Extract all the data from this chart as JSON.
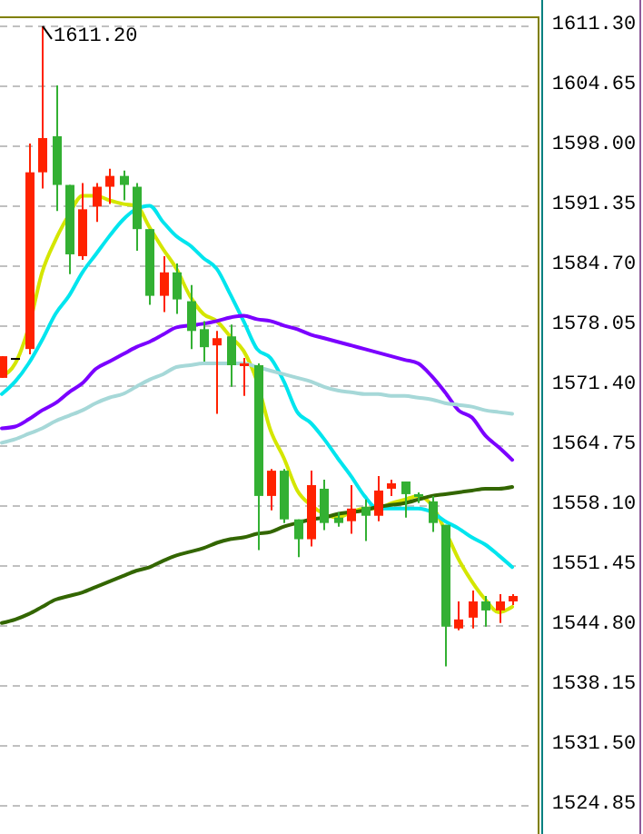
{
  "chart_data": {
    "type": "candlestick",
    "categories": [
      null,
      null,
      null,
      null,
      null,
      null,
      null,
      null,
      null,
      null,
      null,
      null,
      null,
      null,
      null,
      null,
      null,
      null,
      null,
      null,
      null,
      null,
      null,
      null,
      null,
      null,
      null,
      null,
      null,
      null,
      null,
      null,
      null,
      null,
      null,
      null,
      null,
      null,
      null
    ],
    "ohlc": [
      [
        1572.2,
        1574.6,
        1572.2,
        1574.6
      ],
      [
        1574.4,
        1574.4,
        1574.4,
        1574.4
      ],
      [
        1575.4,
        1598.2,
        1574.8,
        1595.0
      ],
      [
        1595.0,
        1611.2,
        1593.2,
        1598.8
      ],
      [
        1599.0,
        1604.65,
        1590.7,
        1593.6
      ],
      [
        1593.6,
        1593.6,
        1583.7,
        1585.9
      ],
      [
        1585.7,
        1593.8,
        1585.3,
        1590.9
      ],
      [
        1591.2,
        1593.8,
        1589.5,
        1593.4
      ],
      [
        1593.4,
        1595.4,
        1591.5,
        1594.6
      ],
      [
        1594.6,
        1595.2,
        1591.9,
        1593.6
      ],
      [
        1593.4,
        1593.8,
        1586.3,
        1588.7
      ],
      [
        1588.7,
        1588.7,
        1580.3,
        1581.3
      ],
      [
        1581.3,
        1585.7,
        1579.5,
        1583.9
      ],
      [
        1583.9,
        1584.9,
        1579.3,
        1580.9
      ],
      [
        1580.7,
        1582.5,
        1575.4,
        1577.4
      ],
      [
        1577.6,
        1578.5,
        1574.0,
        1575.6
      ],
      [
        1575.8,
        1577.4,
        1568.2,
        1576.6
      ],
      [
        1576.8,
        1578.1,
        1571.2,
        1573.6
      ],
      [
        1573.5,
        1574.4,
        1570.2,
        1573.8
      ],
      [
        1573.6,
        1573.8,
        1553.1,
        1559.1
      ],
      [
        1559.1,
        1562.1,
        1557.5,
        1561.9
      ],
      [
        1561.9,
        1562.1,
        1556.1,
        1556.5
      ],
      [
        1556.5,
        1556.5,
        1552.3,
        1554.3
      ],
      [
        1554.3,
        1561.9,
        1553.5,
        1560.3
      ],
      [
        1559.9,
        1560.9,
        1555.3,
        1556.1
      ],
      [
        1556.7,
        1557.3,
        1555.7,
        1556.1
      ],
      [
        1556.3,
        1560.3,
        1554.9,
        1557.7
      ],
      [
        1557.9,
        1558.7,
        1554.1,
        1556.9
      ],
      [
        1556.9,
        1561.3,
        1556.3,
        1559.7
      ],
      [
        1559.9,
        1560.9,
        1559.1,
        1560.5
      ],
      [
        1560.7,
        1560.7,
        1556.7,
        1559.3
      ],
      [
        1559.3,
        1559.5,
        1558.3,
        1559.0
      ],
      [
        1558.5,
        1559.1,
        1555.1,
        1556.1
      ],
      [
        1555.9,
        1555.9,
        1540.2,
        1544.6
      ],
      [
        1544.4,
        1547.4,
        1544.2,
        1545.4
      ],
      [
        1545.6,
        1548.6,
        1544.4,
        1547.4
      ],
      [
        1547.4,
        1548.0,
        1544.6,
        1546.4
      ],
      [
        1546.4,
        1548.2,
        1545.0,
        1547.4
      ],
      [
        1547.4,
        1548.2,
        1547.0,
        1548.0
      ]
    ],
    "series": [
      {
        "type": "line",
        "color": "#d4e600",
        "values": [
          1572.4,
          1573.8,
          1577.8,
          1583.9,
          1587.5,
          1590.3,
          1592.4,
          1592.4,
          1591.9,
          1591.5,
          1591.3,
          1588.9,
          1586.5,
          1584.3,
          1581.3,
          1579.3,
          1578.5,
          1576.8,
          1575.2,
          1571.8,
          1566.4,
          1563.3,
          1559.7,
          1558.1,
          1557.1,
          1556.7,
          1557.3,
          1557.7,
          1557.7,
          1558.3,
          1558.7,
          1559.1,
          1558.1,
          1555.3,
          1552.1,
          1549.6,
          1547.6,
          1546.2,
          1546.8
        ]
      },
      {
        "type": "line",
        "color": "#00e5ee",
        "values": [
          1570.4,
          1571.8,
          1573.8,
          1576.4,
          1579.3,
          1581.3,
          1583.9,
          1585.9,
          1587.9,
          1589.7,
          1590.9,
          1591.3,
          1589.5,
          1587.9,
          1586.9,
          1585.5,
          1584.3,
          1581.5,
          1578.5,
          1575.4,
          1574.4,
          1571.8,
          1568.4,
          1567.2,
          1565.4,
          1563.3,
          1561.3,
          1559.1,
          1557.7,
          1557.7,
          1557.7,
          1557.7,
          1557.3,
          1556.3,
          1555.5,
          1554.5,
          1553.7,
          1552.5,
          1551.2
        ]
      },
      {
        "type": "line",
        "color": "#7b00ff",
        "values": [
          1566.6,
          1566.8,
          1567.6,
          1568.6,
          1569.4,
          1570.6,
          1571.6,
          1573.2,
          1574.0,
          1574.8,
          1575.6,
          1576.2,
          1577.0,
          1577.8,
          1578.0,
          1578.2,
          1578.5,
          1578.9,
          1579.1,
          1578.7,
          1578.5,
          1578.0,
          1577.6,
          1577.0,
          1576.6,
          1576.2,
          1575.8,
          1575.4,
          1575.0,
          1574.6,
          1574.2,
          1573.8,
          1572.4,
          1570.6,
          1568.6,
          1567.8,
          1565.8,
          1564.5,
          1563.1
        ]
      },
      {
        "type": "line",
        "color": "#a6d8d8",
        "values": [
          1565.0,
          1565.4,
          1566.0,
          1566.6,
          1567.4,
          1568.0,
          1568.6,
          1569.4,
          1570.0,
          1570.4,
          1571.2,
          1572.0,
          1572.6,
          1573.4,
          1573.6,
          1573.8,
          1573.8,
          1573.8,
          1573.8,
          1573.4,
          1573.0,
          1572.6,
          1572.2,
          1571.8,
          1571.2,
          1570.8,
          1570.6,
          1570.4,
          1570.4,
          1570.2,
          1570.2,
          1570.0,
          1569.8,
          1569.4,
          1569.2,
          1569.0,
          1568.6,
          1568.4,
          1568.2
        ]
      },
      {
        "type": "line",
        "color": "#336600",
        "values": [
          1545.0,
          1545.4,
          1546.0,
          1546.8,
          1547.6,
          1548.0,
          1548.4,
          1549.0,
          1549.6,
          1550.2,
          1550.8,
          1551.2,
          1551.9,
          1552.5,
          1552.9,
          1553.3,
          1553.9,
          1554.3,
          1554.5,
          1554.9,
          1555.1,
          1555.7,
          1556.1,
          1556.5,
          1556.7,
          1557.1,
          1557.3,
          1557.5,
          1557.9,
          1558.1,
          1558.3,
          1558.7,
          1559.1,
          1559.3,
          1559.5,
          1559.7,
          1559.9,
          1559.9,
          1560.1
        ]
      }
    ],
    "ylim": [
      1521.6,
      1612.3
    ],
    "yticks": [
      {
        "value": 1611.3,
        "label": "1611.30"
      },
      {
        "value": 1604.65,
        "label": "1604.65"
      },
      {
        "value": 1598,
        "label": "1598.00"
      },
      {
        "value": 1591.35,
        "label": "1591.35"
      },
      {
        "value": 1584.7,
        "label": "1584.70"
      },
      {
        "value": 1578.05,
        "label": "1578.05"
      },
      {
        "value": 1571.4,
        "label": "1571.40"
      },
      {
        "value": 1564.75,
        "label": "1564.75"
      },
      {
        "value": 1558.1,
        "label": "1558.10"
      },
      {
        "value": 1551.45,
        "label": "1551.45"
      },
      {
        "value": 1544.8,
        "label": "1544.80"
      },
      {
        "value": 1538.15,
        "label": "1538.15"
      },
      {
        "value": 1531.5,
        "label": "1531.50"
      },
      {
        "value": 1524.85,
        "label": "1524.85"
      }
    ],
    "grid": "y",
    "annotations": [
      "1611.20"
    ]
  }
}
